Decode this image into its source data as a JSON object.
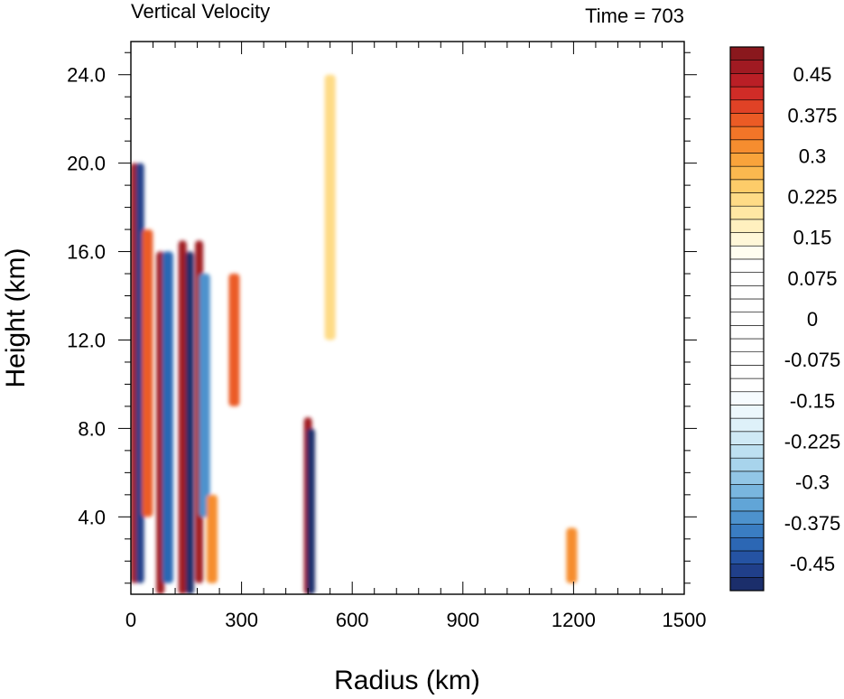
{
  "chart_data": {
    "type": "heatmap",
    "title": "Vertical Velocity",
    "subtitle": "Time = 703",
    "xlabel": "Radius (km)",
    "ylabel": "Height (km)",
    "xlim": [
      0,
      1500
    ],
    "ylim": [
      0.5,
      25.5
    ],
    "x_ticks": [
      0,
      300,
      600,
      900,
      1200,
      1500
    ],
    "x_tick_labels": [
      "0",
      "300",
      "600",
      "900",
      "1200",
      "1500"
    ],
    "y_ticks": [
      4,
      8,
      12,
      16,
      20,
      24
    ],
    "y_tick_labels": [
      "4.0",
      "8.0",
      "12.0",
      "16.0",
      "20.0",
      "24.0"
    ],
    "colorbar": {
      "levels": [
        -0.5,
        -0.475,
        -0.45,
        -0.425,
        -0.4,
        -0.375,
        -0.35,
        -0.325,
        -0.3,
        -0.275,
        -0.25,
        -0.225,
        -0.2,
        -0.175,
        -0.15,
        -0.125,
        -0.1,
        -0.075,
        -0.05,
        -0.025,
        0,
        0.025,
        0.05,
        0.075,
        0.1,
        0.125,
        0.15,
        0.175,
        0.2,
        0.225,
        0.25,
        0.275,
        0.3,
        0.325,
        0.35,
        0.375,
        0.4,
        0.425,
        0.45,
        0.475,
        0.5
      ],
      "labels": [
        "0.45",
        "0.375",
        "0.3",
        "0.225",
        "0.15",
        "0.075",
        "0",
        "-0.075",
        "-0.15",
        "-0.225",
        "-0.3",
        "-0.375",
        "-0.45"
      ],
      "label_values": [
        0.45,
        0.375,
        0.3,
        0.225,
        0.15,
        0.075,
        0,
        -0.075,
        -0.15,
        -0.225,
        -0.3,
        -0.375,
        -0.45
      ],
      "colors_low_to_high": [
        "#1b2e6b",
        "#203f8a",
        "#2553a3",
        "#2c67b4",
        "#3a7dc2",
        "#4d92cd",
        "#61a5d7",
        "#79b6df",
        "#92c6e6",
        "#a8d4ec",
        "#bde0f1",
        "#cfe9f5",
        "#def1f9",
        "#ecf7fc",
        "#f6fbfe",
        "#ffffff",
        "#ffffff",
        "#ffffff",
        "#ffffff",
        "#ffffff",
        "#ffffff",
        "#ffffff",
        "#ffffff",
        "#ffffff",
        "#ffffff",
        "#fffdf0",
        "#fff7d8",
        "#fff0bf",
        "#ffe7a3",
        "#fedb86",
        "#fdcc69",
        "#fbb84f",
        "#f9a33b",
        "#f68d2f",
        "#f27528",
        "#eb5b25",
        "#e04226",
        "#d02c27",
        "#ba1f26",
        "#a01a22",
        "#8a181d"
      ]
    },
    "features": [
      {
        "r": 10,
        "z_range": [
          1,
          20
        ],
        "w": 0.5
      },
      {
        "r": 25,
        "z_range": [
          1,
          20
        ],
        "w": -0.45
      },
      {
        "r": 45,
        "z_range": [
          4,
          17
        ],
        "w": 0.4
      },
      {
        "r": 80,
        "z_range": [
          0.5,
          16
        ],
        "w": 0.5
      },
      {
        "r": 100,
        "z_range": [
          1,
          16
        ],
        "w": -0.4
      },
      {
        "r": 140,
        "z_range": [
          0.5,
          16.5
        ],
        "w": 0.5
      },
      {
        "r": 160,
        "z_range": [
          0.5,
          16
        ],
        "w": -0.5
      },
      {
        "r": 185,
        "z_range": [
          1,
          16.5
        ],
        "w": 0.5
      },
      {
        "r": 200,
        "z_range": [
          4,
          15
        ],
        "w": -0.35
      },
      {
        "r": 220,
        "z_range": [
          1,
          5
        ],
        "w": 0.35
      },
      {
        "r": 280,
        "z_range": [
          9,
          15
        ],
        "w": 0.4
      },
      {
        "r": 480,
        "z_range": [
          0.5,
          8.5
        ],
        "w": 0.5
      },
      {
        "r": 488,
        "z_range": [
          0.5,
          8
        ],
        "w": -0.5
      },
      {
        "r": 540,
        "z_range": [
          12,
          24
        ],
        "w": 0.25
      },
      {
        "r": 1195,
        "z_range": [
          1,
          3.5
        ],
        "w": 0.35
      }
    ]
  }
}
